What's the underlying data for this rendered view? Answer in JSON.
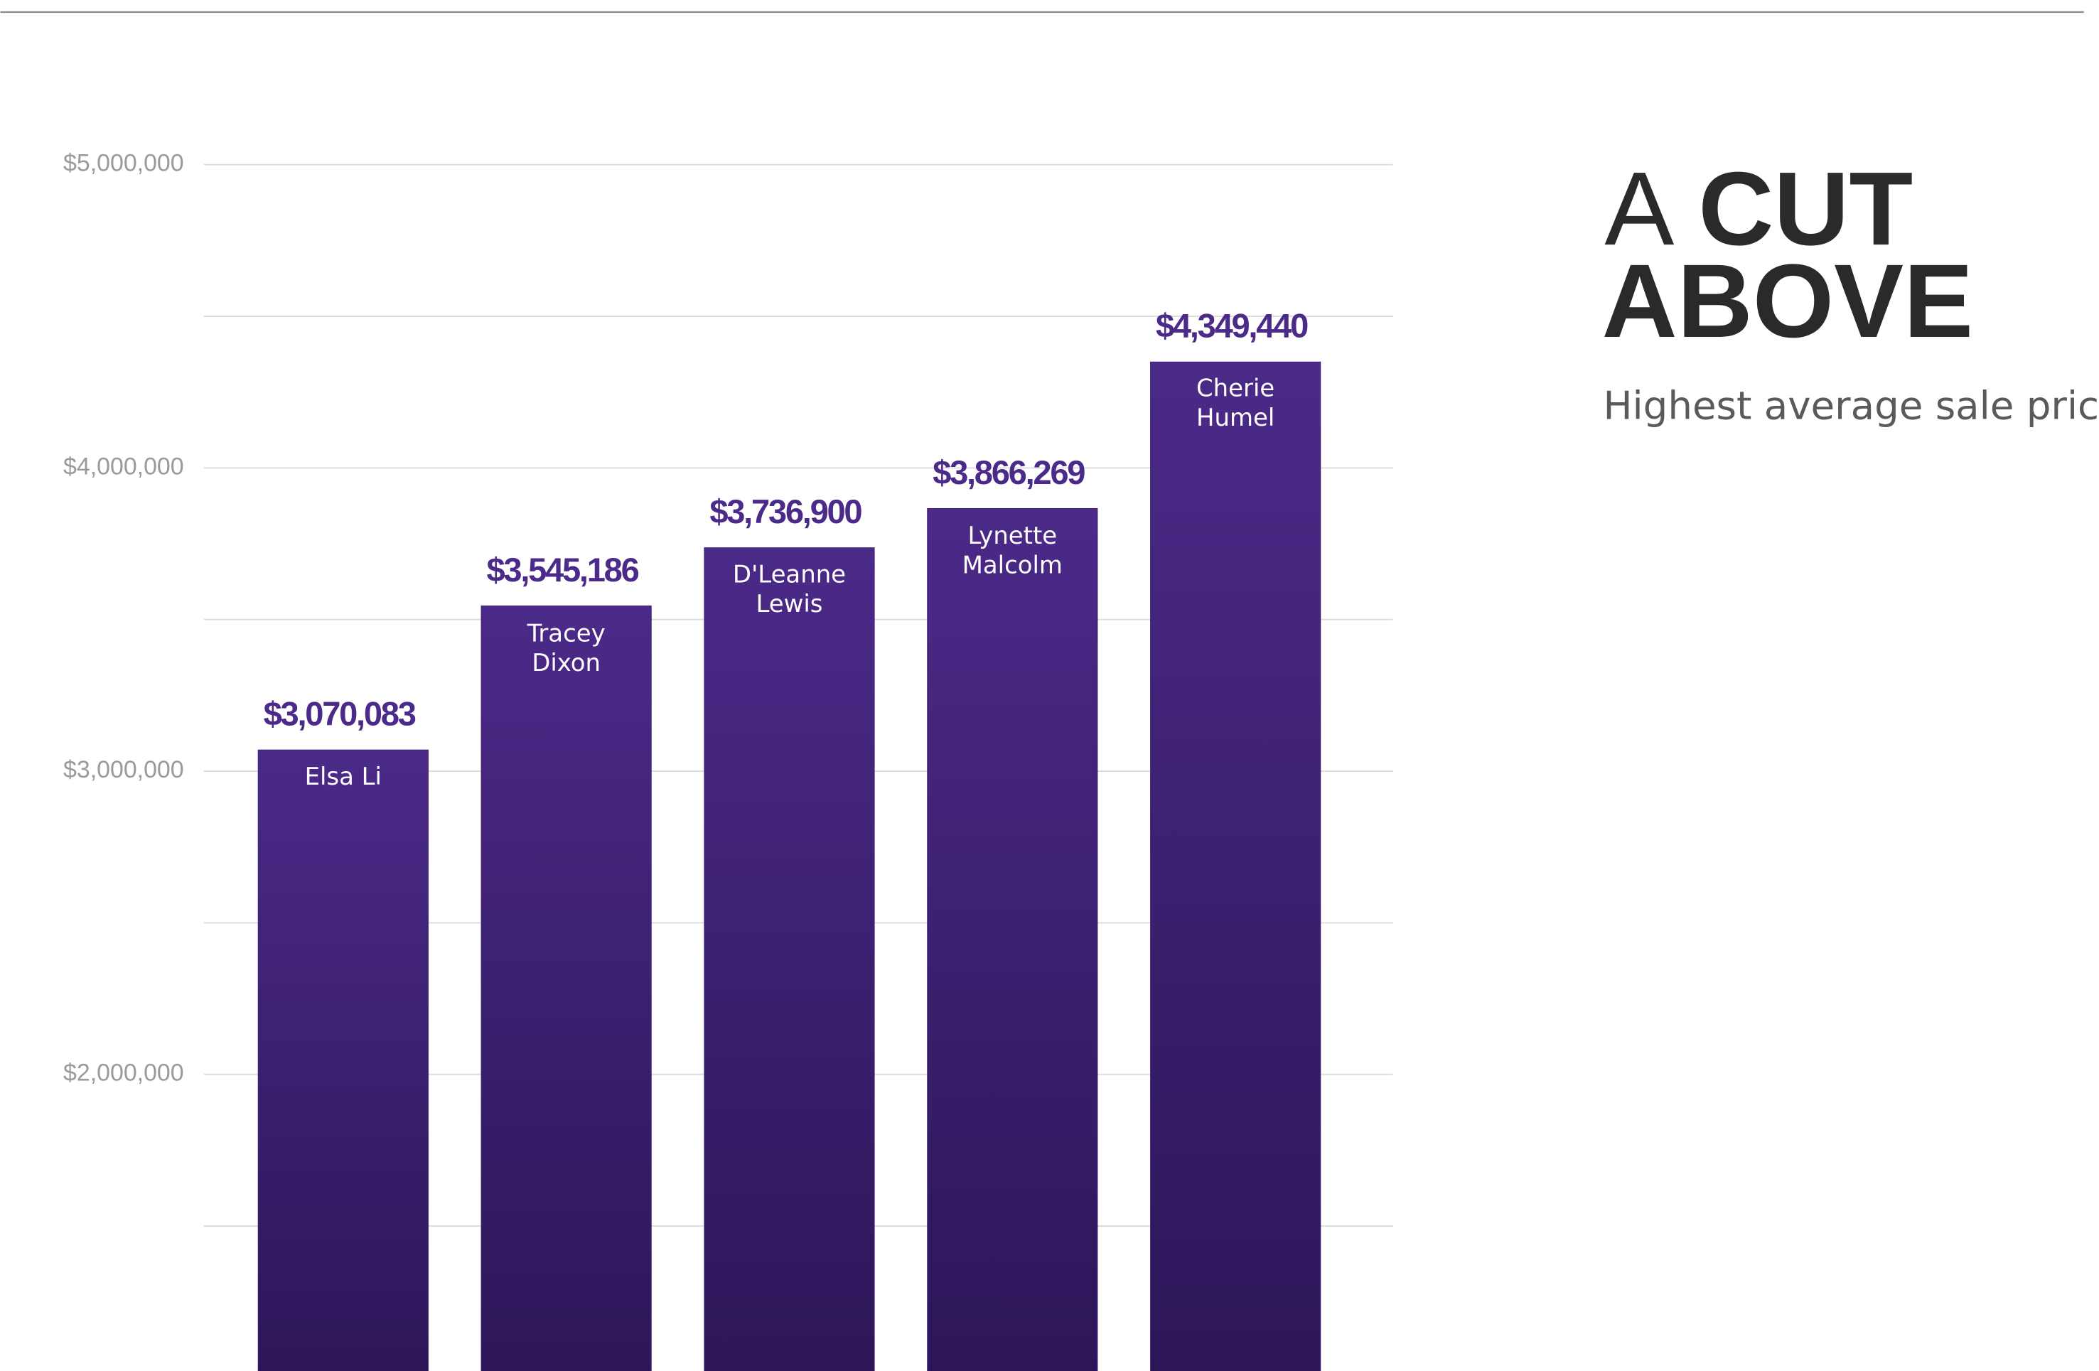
{
  "chart_data": {
    "type": "bar",
    "title": {
      "prefix": "A",
      "line1": "CUT",
      "line2": "ABOVE"
    },
    "subtitle": "Highest average sale price",
    "categories": [
      "Elsa Li",
      "Tracey Dixon",
      "D'Leanne Lewis",
      "Lynette Malcolm",
      "Cherie Humel"
    ],
    "values": [
      3070083,
      3545186,
      3736900,
      3866269,
      4349440
    ],
    "value_labels": [
      "$3,070,083",
      "$3,545,186",
      "$3,736,900",
      "$3,866,269",
      "$4,349,440"
    ],
    "color": "#3f1f76",
    "ylim": [
      1000000,
      5000000
    ],
    "yticks": [
      {
        "value": 2000000,
        "label": "$2,000,000"
      },
      {
        "value": 3000000,
        "label": "$3,000,000"
      },
      {
        "value": 4000000,
        "label": "$4,000,000"
      },
      {
        "value": 5000000,
        "label": "$5,000,000"
      }
    ],
    "minor_yticks": [
      1500000,
      2500000,
      3500000,
      4500000
    ],
    "grid": true
  }
}
